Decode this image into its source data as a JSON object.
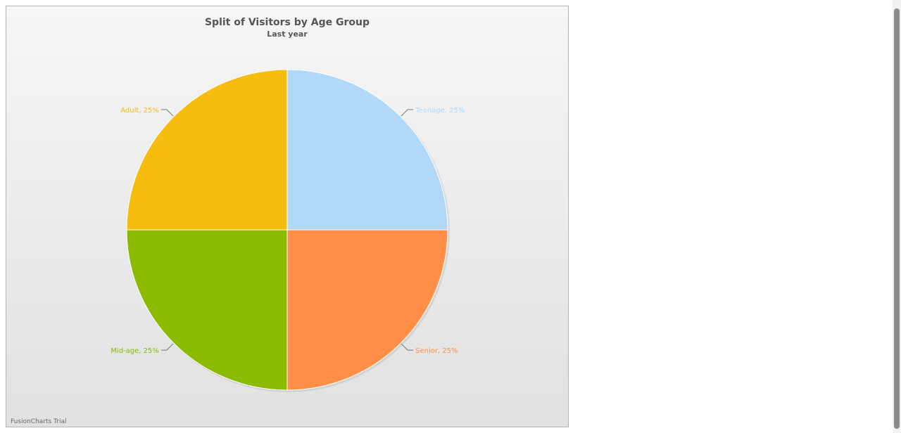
{
  "chart_data": {
    "type": "pie",
    "title": "Split of Visitors by Age Group",
    "subtitle": "Last year",
    "slices": [
      {
        "label": "Teenage",
        "percent": 25,
        "display": "Teenage, 25%",
        "color": "#b1d8f7"
      },
      {
        "label": "Senior",
        "percent": 25,
        "display": "Senior, 25%",
        "color": "#ff8e46"
      },
      {
        "label": "Mid-age",
        "percent": 25,
        "display": "Mid-age, 25%",
        "color": "#8bba00"
      },
      {
        "label": "Adult",
        "percent": 25,
        "display": "Adult, 25%",
        "color": "#f6bd0f"
      }
    ],
    "start_angle_deg": 0,
    "direction": "clockwise-from-top"
  },
  "watermark": "FusionCharts Trial",
  "colors": {
    "text": "#555555",
    "connector": "#777777",
    "frame_border": "#b4b4b4"
  }
}
